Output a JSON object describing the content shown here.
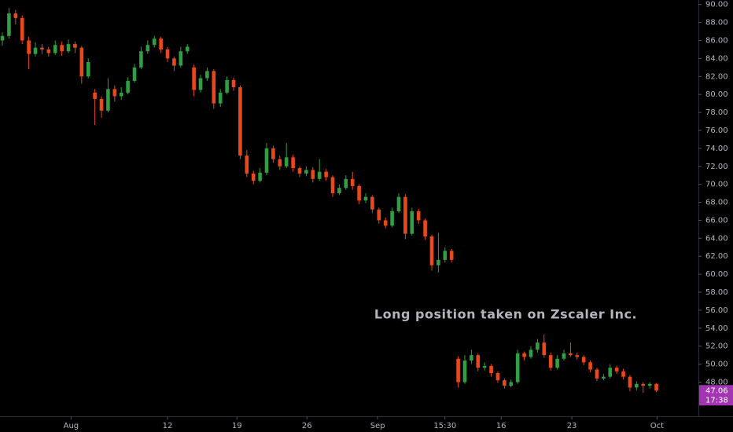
{
  "chart_data": {
    "type": "candlestick",
    "annotation": "Long position taken on Zscaler Inc.",
    "annotation_color": "#6fa0f0",
    "up_color": "#2f9e44",
    "down_color": "#e8481a",
    "countdown": "17:38",
    "last_price_color": "#a334b4",
    "xlim": [
      -0.36,
      105.36
    ],
    "xticks": [
      {
        "value": 10.4,
        "label": "Aug"
      },
      {
        "value": 25,
        "label": "12"
      },
      {
        "value": 35.5,
        "label": "19"
      },
      {
        "value": 46.1,
        "label": "26"
      },
      {
        "value": 56.8,
        "label": "Sep"
      },
      {
        "value": 67,
        "label": "15:30"
      },
      {
        "value": 75.5,
        "label": "16"
      },
      {
        "value": 86.2,
        "label": "23"
      },
      {
        "value": 99.1,
        "label": "Oct"
      }
    ],
    "ylim": [
      44.2,
      90.5
    ],
    "yticks": [
      {
        "value": 48,
        "label": "48.00"
      },
      {
        "value": 50,
        "label": "50.00"
      },
      {
        "value": 52,
        "label": "52.00"
      },
      {
        "value": 54,
        "label": "54.00"
      },
      {
        "value": 56,
        "label": "56.00"
      },
      {
        "value": 58,
        "label": "58.00"
      },
      {
        "value": 60,
        "label": "60.00"
      },
      {
        "value": 62,
        "label": "62.00"
      },
      {
        "value": 64,
        "label": "64.00"
      },
      {
        "value": 66,
        "label": "66.00"
      },
      {
        "value": 68,
        "label": "68.00"
      },
      {
        "value": 70,
        "label": "70.00"
      },
      {
        "value": 72,
        "label": "72.00"
      },
      {
        "value": 74,
        "label": "74.00"
      },
      {
        "value": 76,
        "label": "76.00"
      },
      {
        "value": 78,
        "label": "78.00"
      },
      {
        "value": 80,
        "label": "80.00"
      },
      {
        "value": 82,
        "label": "82.00"
      },
      {
        "value": 84,
        "label": "84.00"
      },
      {
        "value": 86,
        "label": "86.00"
      },
      {
        "value": 88,
        "label": "88.00"
      },
      {
        "value": 90,
        "label": "90.00"
      }
    ],
    "candles": [
      [
        86.0,
        86.9,
        85.4,
        86.5
      ],
      [
        86.5,
        89.6,
        86.2,
        89.0
      ],
      [
        89.0,
        89.4,
        87.8,
        88.5
      ],
      [
        88.5,
        88.8,
        85.6,
        86.0
      ],
      [
        86.0,
        86.4,
        82.8,
        84.5
      ],
      [
        84.5,
        85.8,
        84.2,
        85.2
      ],
      [
        85.2,
        85.6,
        84.5,
        85.0
      ],
      [
        85.0,
        85.3,
        84.2,
        84.6
      ],
      [
        84.6,
        86.0,
        84.4,
        85.5
      ],
      [
        85.5,
        85.9,
        84.3,
        84.8
      ],
      [
        84.8,
        86.1,
        84.6,
        85.6
      ],
      [
        85.6,
        85.9,
        84.6,
        85.2
      ],
      [
        85.2,
        85.4,
        81.2,
        82.0
      ],
      [
        82.0,
        84.0,
        81.8,
        83.6
      ],
      [
        80.2,
        80.6,
        76.6,
        79.5
      ],
      [
        79.5,
        79.8,
        77.4,
        78.2
      ],
      [
        78.2,
        81.8,
        78.0,
        80.6
      ],
      [
        80.6,
        81.0,
        79.2,
        79.8
      ],
      [
        79.8,
        80.8,
        79.4,
        80.2
      ],
      [
        80.2,
        81.9,
        80.0,
        81.5
      ],
      [
        81.5,
        83.4,
        81.3,
        83.0
      ],
      [
        83.0,
        85.3,
        82.8,
        84.8
      ],
      [
        84.8,
        86.0,
        84.5,
        85.5
      ],
      [
        85.5,
        86.5,
        85.2,
        86.2
      ],
      [
        86.2,
        86.4,
        84.6,
        85.0
      ],
      [
        85.0,
        85.3,
        83.6,
        84.0
      ],
      [
        84.0,
        84.2,
        82.6,
        83.2
      ],
      [
        83.2,
        85.3,
        83.0,
        84.8
      ],
      [
        84.8,
        85.6,
        84.5,
        85.3
      ],
      [
        83.0,
        83.3,
        79.8,
        80.5
      ],
      [
        80.5,
        82.2,
        80.2,
        81.8
      ],
      [
        81.8,
        83.0,
        81.5,
        82.6
      ],
      [
        82.6,
        82.8,
        78.4,
        79.0
      ],
      [
        79.0,
        80.6,
        78.6,
        80.2
      ],
      [
        80.2,
        82.0,
        80.0,
        81.6
      ],
      [
        81.6,
        81.9,
        80.4,
        80.8
      ],
      [
        80.8,
        81.0,
        72.8,
        73.2
      ],
      [
        73.2,
        73.8,
        70.8,
        71.2
      ],
      [
        71.2,
        71.5,
        70.0,
        70.4
      ],
      [
        70.4,
        71.8,
        70.2,
        71.3
      ],
      [
        71.3,
        74.6,
        71.0,
        74.0
      ],
      [
        74.0,
        74.3,
        72.4,
        72.8
      ],
      [
        72.8,
        73.2,
        71.6,
        72.0
      ],
      [
        72.0,
        74.6,
        71.8,
        73.0
      ],
      [
        73.0,
        73.3,
        71.4,
        71.8
      ],
      [
        71.8,
        72.0,
        70.8,
        71.2
      ],
      [
        71.2,
        72.0,
        70.9,
        71.6
      ],
      [
        71.6,
        71.9,
        70.2,
        70.6
      ],
      [
        70.6,
        72.8,
        70.4,
        71.4
      ],
      [
        71.4,
        71.7,
        70.4,
        70.8
      ],
      [
        70.8,
        71.0,
        68.6,
        69.0
      ],
      [
        69.0,
        70.0,
        68.8,
        69.6
      ],
      [
        69.6,
        71.0,
        69.4,
        70.6
      ],
      [
        70.6,
        71.4,
        69.4,
        69.8
      ],
      [
        69.8,
        70.0,
        67.8,
        68.2
      ],
      [
        68.2,
        69.0,
        67.9,
        68.6
      ],
      [
        68.6,
        68.8,
        66.8,
        67.2
      ],
      [
        67.2,
        67.4,
        65.6,
        66.0
      ],
      [
        66.0,
        66.3,
        65.1,
        65.4
      ],
      [
        65.4,
        67.4,
        65.2,
        67.0
      ],
      [
        67.0,
        69.0,
        66.8,
        68.6
      ],
      [
        68.6,
        68.9,
        63.9,
        64.5
      ],
      [
        64.5,
        67.4,
        64.3,
        67.0
      ],
      [
        67.0,
        67.3,
        65.6,
        66.0
      ],
      [
        66.0,
        66.2,
        63.8,
        64.2
      ],
      [
        64.2,
        64.4,
        60.4,
        61.0
      ],
      [
        61.0,
        64.6,
        60.2,
        61.6
      ],
      [
        61.6,
        63.0,
        61.3,
        62.6
      ],
      [
        62.6,
        62.8,
        61.3,
        61.6
      ],
      [
        50.6,
        50.9,
        47.4,
        48.0
      ],
      [
        48.0,
        51.0,
        47.8,
        50.4
      ],
      [
        50.4,
        51.6,
        50.0,
        51.0
      ],
      [
        51.0,
        51.2,
        49.2,
        49.6
      ],
      [
        49.6,
        50.2,
        49.3,
        49.8
      ],
      [
        49.8,
        50.0,
        48.6,
        49.0
      ],
      [
        49.0,
        49.2,
        47.9,
        48.2
      ],
      [
        48.2,
        48.4,
        47.3,
        47.6
      ],
      [
        47.6,
        48.3,
        47.4,
        48.0
      ],
      [
        48.0,
        51.6,
        47.8,
        51.2
      ],
      [
        51.2,
        51.4,
        50.4,
        50.8
      ],
      [
        50.8,
        52.0,
        50.6,
        51.6
      ],
      [
        51.6,
        52.8,
        51.3,
        52.4
      ],
      [
        52.4,
        53.3,
        50.7,
        51.0
      ],
      [
        51.0,
        51.3,
        49.3,
        49.6
      ],
      [
        49.6,
        51.0,
        49.4,
        50.6
      ],
      [
        50.6,
        51.6,
        50.4,
        51.2
      ],
      [
        51.2,
        52.4,
        50.8,
        51.0
      ],
      [
        51.0,
        51.3,
        50.5,
        50.8
      ],
      [
        50.8,
        51.0,
        49.9,
        50.2
      ],
      [
        50.2,
        50.4,
        49.1,
        49.4
      ],
      [
        49.4,
        49.6,
        48.1,
        48.4
      ],
      [
        48.4,
        48.9,
        48.2,
        48.6
      ],
      [
        48.6,
        50.0,
        48.4,
        49.6
      ],
      [
        49.6,
        49.8,
        48.9,
        49.2
      ],
      [
        49.2,
        49.5,
        48.3,
        48.6
      ],
      [
        48.6,
        48.8,
        47.0,
        47.4
      ],
      [
        47.4,
        48.1,
        47.1,
        47.8
      ],
      [
        47.8,
        48.0,
        46.8,
        47.6
      ],
      [
        47.6,
        48.0,
        47.3,
        47.8
      ],
      [
        47.8,
        47.9,
        46.9,
        47.06
      ]
    ]
  }
}
